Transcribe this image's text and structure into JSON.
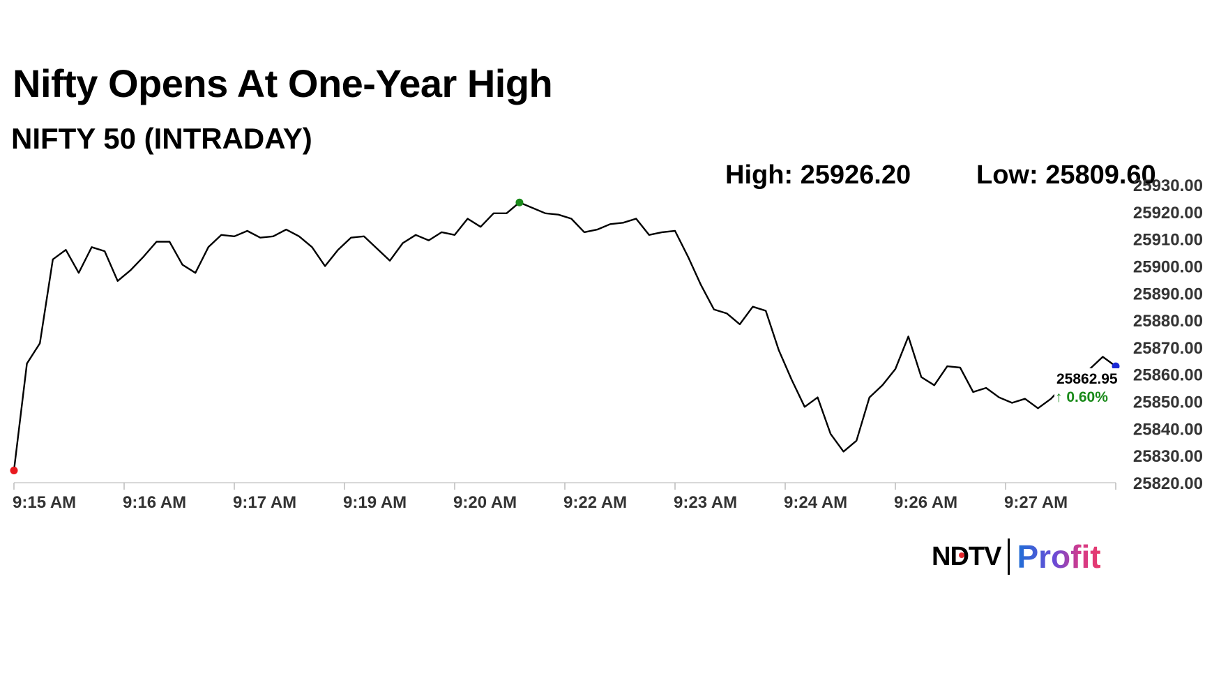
{
  "header": {
    "title": "Nifty Opens At One-Year High",
    "subtitle": "NIFTY 50 (INTRADAY)",
    "high_label": "High: 25926.20",
    "low_label": "Low: 25809.60"
  },
  "branding": {
    "ndtv": "NDTV",
    "profit": "Profit",
    "accent_red": "#e3262b"
  },
  "chart_data": {
    "type": "line",
    "title": "NIFTY 50 (INTRADAY)",
    "xlabel": "",
    "ylabel": "",
    "ylim": [
      25820,
      25930
    ],
    "yticks": [
      "25930.00",
      "25920.00",
      "25910.00",
      "25900.00",
      "25890.00",
      "25880.00",
      "25870.00",
      "25860.00",
      "25850.00",
      "25840.00",
      "25830.00",
      "25820.00"
    ],
    "xticks": [
      "9:15 AM",
      "9:16 AM",
      "9:17 AM",
      "9:19 AM",
      "9:20 AM",
      "9:22 AM",
      "9:23 AM",
      "9:24 AM",
      "9:26 AM",
      "9:27 AM"
    ],
    "grid": false,
    "line_color": "#000000",
    "series": [
      {
        "values": [
          25824.5,
          25864.0,
          25871.5,
          25902.5,
          25906.0,
          25897.5,
          25907.0,
          25905.5,
          25894.5,
          25898.5,
          25903.5,
          25909.0,
          25909.0,
          25900.5,
          25897.5,
          25907.0,
          25911.5,
          25911.0,
          25913.0,
          25910.5,
          25911.0,
          25913.5,
          25911.0,
          25907.0,
          25900.0,
          25906.0,
          25910.5,
          25911.0,
          25906.5,
          25902.0,
          25908.5,
          25911.5,
          25909.5,
          25912.5,
          25911.5,
          25917.5,
          25914.5,
          25919.5,
          25919.5,
          25923.5,
          25921.5,
          25919.5,
          25919.0,
          25917.5,
          25912.5,
          25913.5,
          25915.5,
          25916.0,
          25917.5,
          25911.5,
          25912.5,
          25913.0,
          25903.5,
          25893.0,
          25884.0,
          25882.5,
          25878.5,
          25885.0,
          25883.5,
          25869.0,
          25858.0,
          25848.0,
          25851.5,
          25838.0,
          25831.5,
          25835.5,
          25851.5,
          25856.0,
          25862.0,
          25874.0,
          25859.0,
          25856.0,
          25863.0,
          25862.5,
          25853.5,
          25855.0,
          25851.5,
          25849.5,
          25851.0,
          25847.5,
          25851.0,
          25856.0,
          25859.0,
          25862.0,
          25866.5,
          25863.0
        ]
      }
    ],
    "markers": {
      "open": {
        "index": 0,
        "color": "#e8191e"
      },
      "high": {
        "index": 39,
        "color": "#1a8a1a"
      },
      "last": {
        "index": 85,
        "color": "#1b2ad6"
      }
    },
    "last_value_label": "25862.95",
    "last_change_label": "↑ 0.60%"
  }
}
